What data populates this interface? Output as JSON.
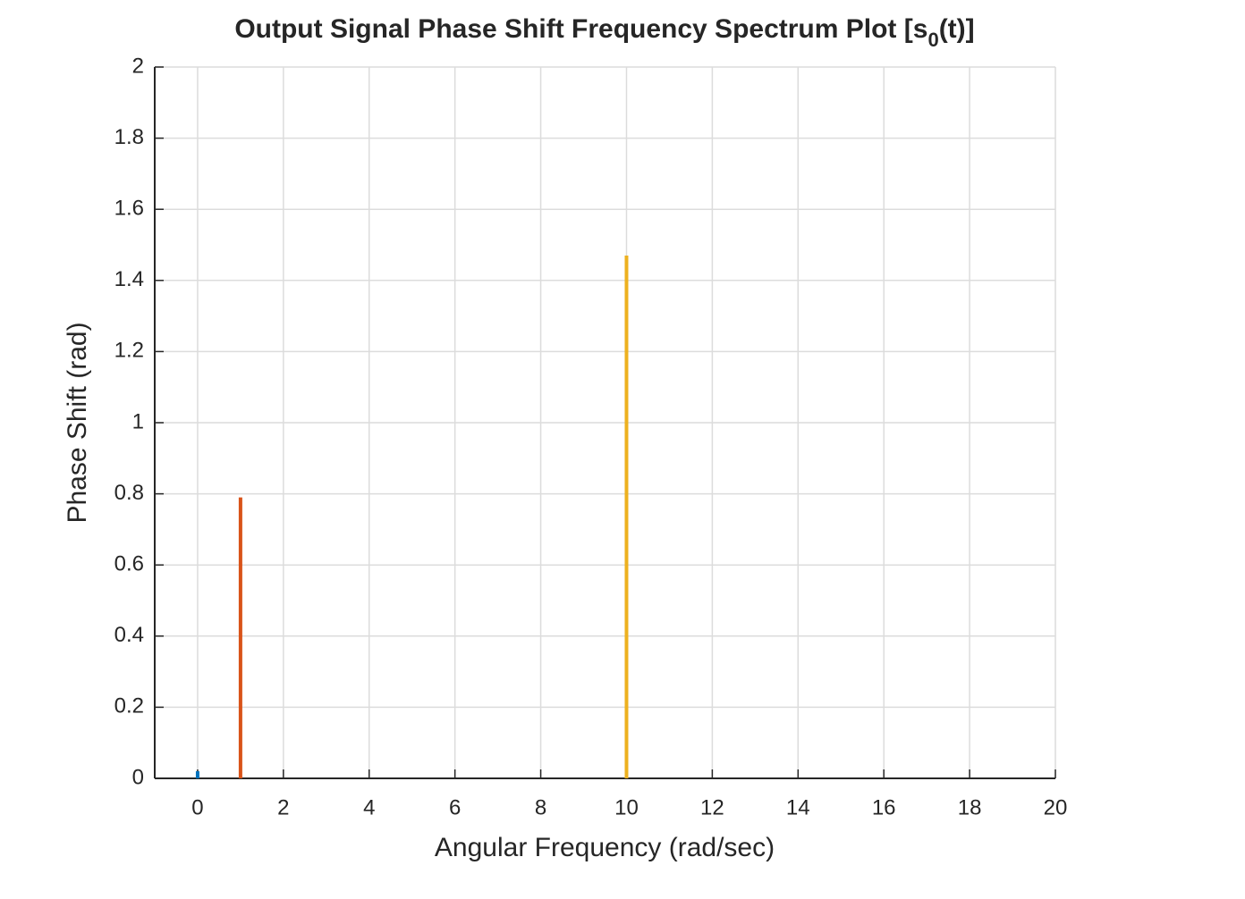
{
  "chart_data": {
    "type": "stem",
    "title": [
      "Output Signal Phase Shift Frequency Spectrum Plot [s",
      "0",
      "(t)]"
    ],
    "xlabel": "Angular Frequency (rad/sec)",
    "ylabel": "Phase Shift (rad)",
    "series": [
      {
        "color": "#0072bd",
        "x": [
          0
        ],
        "values": [
          0.02
        ]
      },
      {
        "color": "#d95319",
        "x": [
          1
        ],
        "values": [
          0.79
        ]
      },
      {
        "color": "#edb120",
        "x": [
          10
        ],
        "values": [
          1.47
        ]
      }
    ],
    "xlim": [
      -1,
      20
    ],
    "xticks": [
      0,
      2,
      4,
      6,
      8,
      10,
      12,
      14,
      16,
      18,
      20
    ],
    "ylim": [
      0,
      2
    ],
    "yticks": [
      0,
      0.2,
      0.4,
      0.6,
      0.8,
      1,
      1.2,
      1.4,
      1.6,
      1.8,
      2
    ],
    "grid": true
  }
}
